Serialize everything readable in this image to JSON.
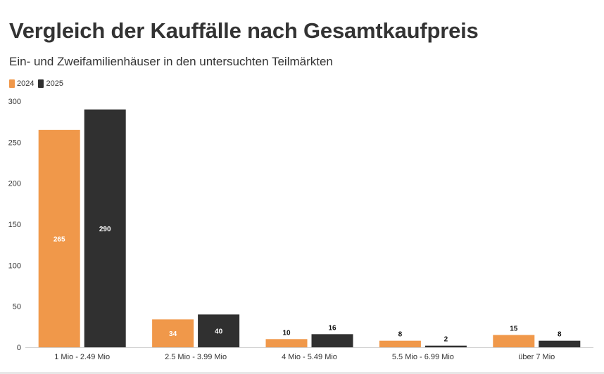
{
  "header": {
    "title": "Vergleich der Kauffälle nach Gesamtkaufpreis",
    "subtitle": "Ein- und Zweifamilienhäuser in den untersuchten Teilmärkten"
  },
  "colors": {
    "s2024": "#f0984a",
    "s2025": "#303030",
    "grid": "#e6e6e6",
    "axis": "#d0d0d0",
    "text": "#333333"
  },
  "chart_data": {
    "type": "bar",
    "title": "Vergleich der Kauffälle nach Gesamtkaufpreis",
    "subtitle": "Ein- und Zweifamilienhäuser in den untersuchten Teilmärkten",
    "xlabel": "",
    "ylabel": "",
    "ylim": [
      0,
      300
    ],
    "yticks": [
      0,
      50,
      100,
      150,
      200,
      250,
      300
    ],
    "categories": [
      "1 Mio - 2.49 Mio",
      "2.5 Mio - 3.99 Mio",
      "4 Mio - 5.49 Mio",
      "5.5 Mio - 6.99 Mio",
      "über 7 Mio"
    ],
    "series": [
      {
        "name": "2024",
        "values": [
          265,
          34,
          10,
          8,
          15
        ]
      },
      {
        "name": "2025",
        "values": [
          290,
          40,
          16,
          2,
          8
        ]
      }
    ],
    "legend": "top-left",
    "grid": false
  }
}
